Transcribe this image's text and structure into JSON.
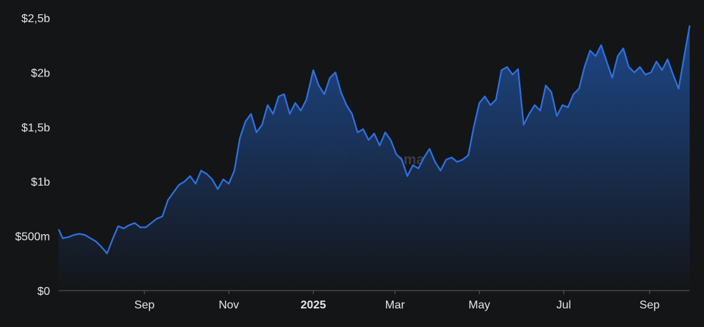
{
  "colors": {
    "background": "#141517",
    "line": "#2f71e0",
    "area_top": "#1e4a8f",
    "area_bottom": "#141517",
    "axis": "#5a5d63",
    "text": "#e6e6e6"
  },
  "watermark": {
    "text": "DefiLlama",
    "icon": "llama-logo-icon"
  },
  "chart_data": {
    "type": "area",
    "title": "",
    "xlabel": "",
    "ylabel": "",
    "grid": false,
    "ylim": [
      0,
      2.5
    ],
    "y_ticks": [
      {
        "value": 0,
        "label": "$0"
      },
      {
        "value": 0.5,
        "label": "$500m"
      },
      {
        "value": 1,
        "label": "$1b"
      },
      {
        "value": 1.5,
        "label": "$1,5b"
      },
      {
        "value": 2,
        "label": "$2b"
      },
      {
        "value": 2.5,
        "label": "$2,5b"
      }
    ],
    "x_ticks": [
      {
        "date": "2024-09-01",
        "label": "Sep",
        "bold": false
      },
      {
        "date": "2024-11-01",
        "label": "Nov",
        "bold": false
      },
      {
        "date": "2025-01-01",
        "label": "2025",
        "bold": true
      },
      {
        "date": "2025-03-01",
        "label": "Mar",
        "bold": false
      },
      {
        "date": "2025-05-01",
        "label": "May",
        "bold": false
      },
      {
        "date": "2025-07-01",
        "label": "Jul",
        "bold": false
      },
      {
        "date": "2025-09-01",
        "label": "Sep",
        "bold": false
      }
    ],
    "xlim": [
      "2024-07-01",
      "2025-09-30"
    ],
    "value_unit": "billion USD",
    "series": [
      {
        "points": [
          [
            "2024-07-01",
            0.56
          ],
          [
            "2024-07-04",
            0.48
          ],
          [
            "2024-07-08",
            0.49
          ],
          [
            "2024-07-12",
            0.51
          ],
          [
            "2024-07-16",
            0.52
          ],
          [
            "2024-07-20",
            0.51
          ],
          [
            "2024-07-24",
            0.48
          ],
          [
            "2024-07-28",
            0.45
          ],
          [
            "2024-08-01",
            0.4
          ],
          [
            "2024-08-05",
            0.34
          ],
          [
            "2024-08-09",
            0.47
          ],
          [
            "2024-08-13",
            0.59
          ],
          [
            "2024-08-17",
            0.57
          ],
          [
            "2024-08-21",
            0.6
          ],
          [
            "2024-08-25",
            0.62
          ],
          [
            "2024-08-29",
            0.58
          ],
          [
            "2024-09-02",
            0.58
          ],
          [
            "2024-09-06",
            0.62
          ],
          [
            "2024-09-10",
            0.66
          ],
          [
            "2024-09-14",
            0.68
          ],
          [
            "2024-09-18",
            0.83
          ],
          [
            "2024-09-22",
            0.9
          ],
          [
            "2024-09-26",
            0.97
          ],
          [
            "2024-09-30",
            1.0
          ],
          [
            "2024-10-04",
            1.05
          ],
          [
            "2024-10-08",
            0.98
          ],
          [
            "2024-10-12",
            1.1
          ],
          [
            "2024-10-16",
            1.07
          ],
          [
            "2024-10-20",
            1.02
          ],
          [
            "2024-10-24",
            0.93
          ],
          [
            "2024-10-28",
            1.02
          ],
          [
            "2024-11-01",
            0.98
          ],
          [
            "2024-11-05",
            1.1
          ],
          [
            "2024-11-09",
            1.4
          ],
          [
            "2024-11-13",
            1.55
          ],
          [
            "2024-11-17",
            1.62
          ],
          [
            "2024-11-21",
            1.45
          ],
          [
            "2024-11-25",
            1.52
          ],
          [
            "2024-11-29",
            1.7
          ],
          [
            "2024-12-03",
            1.62
          ],
          [
            "2024-12-07",
            1.78
          ],
          [
            "2024-12-11",
            1.8
          ],
          [
            "2024-12-15",
            1.62
          ],
          [
            "2024-12-19",
            1.72
          ],
          [
            "2024-12-23",
            1.65
          ],
          [
            "2024-12-27",
            1.75
          ],
          [
            "2025-01-01",
            2.02
          ],
          [
            "2025-01-05",
            1.88
          ],
          [
            "2025-01-09",
            1.8
          ],
          [
            "2025-01-13",
            1.95
          ],
          [
            "2025-01-17",
            2.0
          ],
          [
            "2025-01-21",
            1.82
          ],
          [
            "2025-01-25",
            1.7
          ],
          [
            "2025-01-29",
            1.62
          ],
          [
            "2025-02-02",
            1.45
          ],
          [
            "2025-02-06",
            1.48
          ],
          [
            "2025-02-10",
            1.38
          ],
          [
            "2025-02-14",
            1.44
          ],
          [
            "2025-02-18",
            1.33
          ],
          [
            "2025-02-22",
            1.45
          ],
          [
            "2025-02-26",
            1.38
          ],
          [
            "2025-03-02",
            1.25
          ],
          [
            "2025-03-06",
            1.2
          ],
          [
            "2025-03-10",
            1.05
          ],
          [
            "2025-03-14",
            1.15
          ],
          [
            "2025-03-18",
            1.12
          ],
          [
            "2025-03-22",
            1.22
          ],
          [
            "2025-03-26",
            1.3
          ],
          [
            "2025-03-30",
            1.18
          ],
          [
            "2025-04-03",
            1.1
          ],
          [
            "2025-04-07",
            1.2
          ],
          [
            "2025-04-11",
            1.22
          ],
          [
            "2025-04-15",
            1.18
          ],
          [
            "2025-04-19",
            1.2
          ],
          [
            "2025-04-23",
            1.24
          ],
          [
            "2025-04-27",
            1.5
          ],
          [
            "2025-05-01",
            1.72
          ],
          [
            "2025-05-05",
            1.78
          ],
          [
            "2025-05-09",
            1.7
          ],
          [
            "2025-05-13",
            1.75
          ],
          [
            "2025-05-17",
            2.02
          ],
          [
            "2025-05-21",
            2.05
          ],
          [
            "2025-05-25",
            1.98
          ],
          [
            "2025-05-29",
            2.03
          ],
          [
            "2025-06-02",
            1.52
          ],
          [
            "2025-06-06",
            1.62
          ],
          [
            "2025-06-10",
            1.7
          ],
          [
            "2025-06-14",
            1.65
          ],
          [
            "2025-06-18",
            1.88
          ],
          [
            "2025-06-22",
            1.82
          ],
          [
            "2025-06-26",
            1.6
          ],
          [
            "2025-06-30",
            1.7
          ],
          [
            "2025-07-04",
            1.68
          ],
          [
            "2025-07-08",
            1.8
          ],
          [
            "2025-07-12",
            1.85
          ],
          [
            "2025-07-16",
            2.05
          ],
          [
            "2025-07-20",
            2.2
          ],
          [
            "2025-07-24",
            2.15
          ],
          [
            "2025-07-28",
            2.25
          ],
          [
            "2025-08-01",
            2.1
          ],
          [
            "2025-08-05",
            1.95
          ],
          [
            "2025-08-09",
            2.15
          ],
          [
            "2025-08-13",
            2.22
          ],
          [
            "2025-08-17",
            2.05
          ],
          [
            "2025-08-21",
            2.0
          ],
          [
            "2025-08-25",
            2.05
          ],
          [
            "2025-08-29",
            1.98
          ],
          [
            "2025-09-02",
            2.0
          ],
          [
            "2025-09-06",
            2.1
          ],
          [
            "2025-09-10",
            2.02
          ],
          [
            "2025-09-14",
            2.12
          ],
          [
            "2025-09-18",
            1.98
          ],
          [
            "2025-09-22",
            1.85
          ],
          [
            "2025-09-26",
            2.15
          ],
          [
            "2025-09-30",
            2.43
          ]
        ]
      }
    ]
  }
}
